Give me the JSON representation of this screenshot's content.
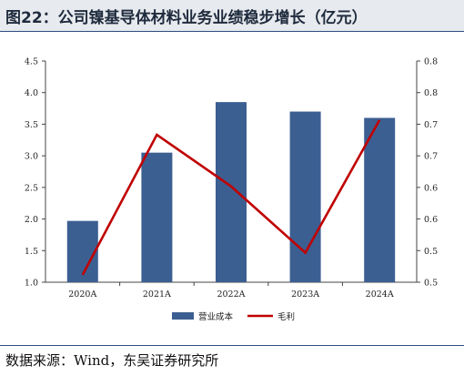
{
  "header": {
    "title": "图22：公司镍基导体材料业务业绩稳步增长（亿元）"
  },
  "footer": {
    "source": "数据来源：Wind，东吴证券研究所"
  },
  "colors": {
    "bar": "#3c5f92",
    "line": "#c00000",
    "axis": "#444444",
    "title_bg": "#e7eaee",
    "rule": "#2e4f7f"
  },
  "chart_data": {
    "type": "bar",
    "title": "",
    "categories": [
      "2020A",
      "2021A",
      "2022A",
      "2023A",
      "2024A"
    ],
    "series": [
      {
        "name": "营业成本",
        "type": "bar",
        "axis": "left",
        "values": [
          1.97,
          3.05,
          3.85,
          3.7,
          3.6
        ]
      },
      {
        "name": "毛利",
        "type": "line",
        "axis": "right",
        "values": [
          0.51,
          0.7,
          0.63,
          0.54,
          0.72
        ]
      }
    ],
    "ylim_left": [
      1.0,
      4.5
    ],
    "yticks_left": [
      "1.0",
      "1.5",
      "2.0",
      "2.5",
      "3.0",
      "3.5",
      "4.0",
      "4.5"
    ],
    "ylim_right": [
      0.5,
      0.8
    ],
    "yticks_right": [
      "0.5",
      "0.5",
      "0.6",
      "0.6",
      "0.7",
      "0.7",
      "0.8",
      "0.8"
    ],
    "grid": false,
    "legend": "bottom"
  }
}
